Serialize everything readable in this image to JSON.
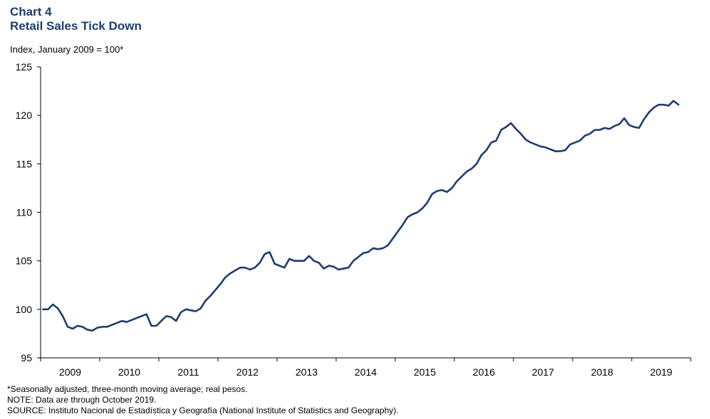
{
  "chart_data": {
    "type": "line",
    "title": "Chart 4",
    "subtitle": "Retail Sales Tick Down",
    "ylabel": "Index, January 2009 = 100*",
    "xlabel": "",
    "ylim": [
      95,
      125
    ],
    "y_ticks": [
      "95",
      "100",
      "105",
      "110",
      "115",
      "120",
      "125"
    ],
    "x_ticks": [
      "2009",
      "2010",
      "2011",
      "2012",
      "2013",
      "2014",
      "2015",
      "2016",
      "2017",
      "2018",
      "2019"
    ],
    "x_start": "2009-01",
    "line_color": "#1f3d6b",
    "grid": false,
    "series": [
      {
        "values": [
          100.0,
          100.0,
          100.5,
          100.1,
          99.3,
          98.2,
          98.0,
          98.3,
          98.2,
          97.9,
          97.8,
          98.1,
          98.2,
          98.2,
          98.4,
          98.6,
          98.8,
          98.7,
          98.9,
          99.1,
          99.3,
          99.5,
          98.3,
          98.3,
          98.8,
          99.3,
          99.2,
          98.8,
          99.7,
          100.0,
          99.9,
          99.8,
          100.1,
          100.9,
          101.4,
          102.0,
          102.6,
          103.3,
          103.7,
          104.0,
          104.3,
          104.3,
          104.1,
          104.3,
          104.8,
          105.7,
          105.9,
          104.7,
          104.5,
          104.3,
          105.2,
          105.0,
          105.0,
          105.0,
          105.5,
          105.0,
          104.8,
          104.2,
          104.5,
          104.4,
          104.1,
          104.2,
          104.3,
          105.0,
          105.4,
          105.8,
          105.9,
          106.3,
          106.2,
          106.3,
          106.6,
          107.3,
          108.0,
          108.7,
          109.5,
          109.8,
          110.0,
          110.4,
          111.0,
          111.9,
          112.2,
          112.3,
          112.1,
          112.5,
          113.2,
          113.7,
          114.2,
          114.5,
          115.0,
          115.9,
          116.4,
          117.2,
          117.4,
          118.5,
          118.8,
          119.2,
          118.6,
          118.1,
          117.5,
          117.2,
          117.0,
          116.8,
          116.7,
          116.5,
          116.3,
          116.3,
          116.4,
          117.0,
          117.2,
          117.4,
          117.9,
          118.1,
          118.5,
          118.5,
          118.7,
          118.6,
          118.9,
          119.1,
          119.7,
          119.0,
          118.8,
          118.7,
          119.6,
          120.3,
          120.8,
          121.1,
          121.1,
          121.0,
          121.5,
          121.1
        ]
      }
    ]
  },
  "footnotes": {
    "line1": "*Seasonally adjusted, three-month  moving average;  real pesos.",
    "line2": "NOTE: Data are through October 2019.",
    "line3": "SOURCE: Instituto Nacional de Estadística y Geografía  (National Institute of Statistics and Geography)."
  }
}
